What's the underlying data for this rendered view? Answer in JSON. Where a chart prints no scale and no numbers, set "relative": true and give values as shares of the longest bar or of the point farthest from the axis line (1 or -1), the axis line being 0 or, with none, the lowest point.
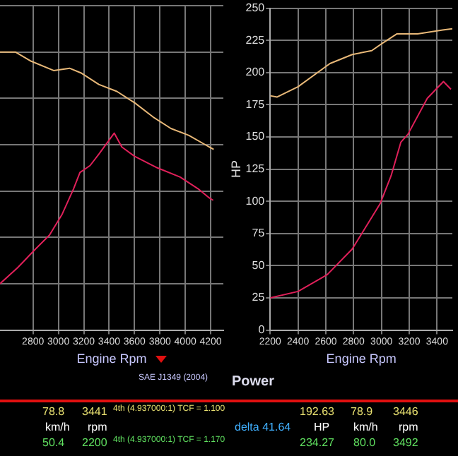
{
  "chart_data": [
    {
      "type": "line",
      "relative": true,
      "xlabel": "Engine Rpm",
      "xlim": [
        2540,
        4300
      ],
      "xticks": [
        2800,
        3000,
        3200,
        3400,
        3600,
        3800,
        4000,
        4200
      ],
      "grid": true,
      "legend": false,
      "marker": "none",
      "annotations": [
        "SAE J1349 (2004)"
      ],
      "series": [
        {
          "color": "#e8b878",
          "x": [
            2540,
            2661,
            2786,
            2963,
            3088,
            3177,
            3319,
            3461,
            3603,
            3745,
            3887,
            4029,
            4189,
            4224
          ],
          "values": [
            1.0,
            1.0,
            0.96,
            0.92,
            0.93,
            0.91,
            0.86,
            0.83,
            0.78,
            0.72,
            0.67,
            0.64,
            0.59,
            0.58
          ]
        },
        {
          "color": "#e0205a",
          "x": [
            2540,
            2680,
            2820,
            2930,
            3030,
            3120,
            3170,
            3250,
            3320,
            3440,
            3500,
            3600,
            3780,
            3960,
            4100,
            4190,
            4220
          ],
          "values": [
            0,
            0.07,
            0.15,
            0.21,
            0.3,
            0.41,
            0.48,
            0.51,
            0.56,
            0.65,
            0.59,
            0.55,
            0.5,
            0.46,
            0.41,
            0.37,
            0.36
          ]
        }
      ]
    },
    {
      "type": "line",
      "title": "Power",
      "xlabel": "Engine Rpm",
      "ylabel": "HP",
      "xlim": [
        2200,
        3510
      ],
      "xticks": [
        2200,
        2400,
        2600,
        2800,
        3000,
        3200,
        3400
      ],
      "ylim": [
        0,
        250
      ],
      "yticks": [
        0,
        25,
        50,
        75,
        100,
        125,
        150,
        175,
        200,
        225,
        250
      ],
      "grid": true,
      "legend": false,
      "marker": "none",
      "series": [
        {
          "color": "#e8b878",
          "x": [
            2200,
            2250,
            2400,
            2630,
            2790,
            2930,
            3010,
            3110,
            3260,
            3440,
            3510
          ],
          "values": [
            182,
            181,
            189,
            207,
            214,
            217,
            223,
            230,
            230,
            233,
            234
          ]
        },
        {
          "color": "#e0205a",
          "x": [
            2200,
            2400,
            2610,
            2790,
            2990,
            3070,
            3140,
            3190,
            3330,
            3446,
            3500
          ],
          "values": [
            25,
            30,
            43,
            63,
            98,
            120,
            146,
            152,
            180,
            193,
            187
          ]
        }
      ]
    },
    {
      "type": "other",
      "annotations": [
        "78.8",
        "3441",
        "4th (4.937000:1) TCF = 1.100",
        "km/h",
        "rpm",
        "50.4",
        "2200",
        "4th (4.937000:1) TCF = 1.170",
        "192.63",
        "78.9",
        "3446",
        "delta 41.64",
        "HP",
        "km/h",
        "rpm",
        "234.27",
        "80.0",
        "3492"
      ]
    }
  ]
}
